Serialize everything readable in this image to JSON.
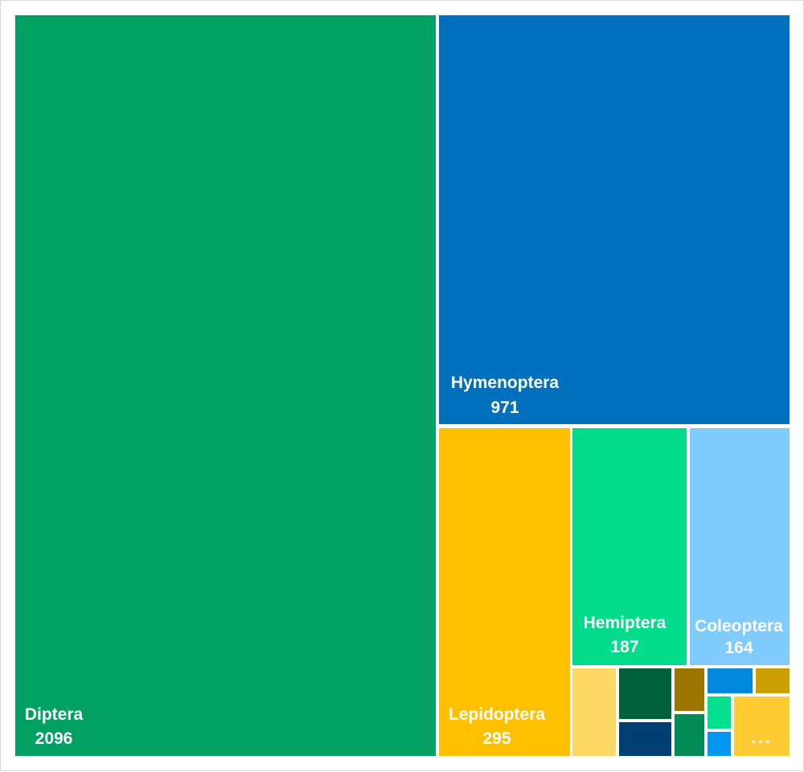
{
  "chart_data": {
    "type": "treemap",
    "title": "",
    "items": [
      {
        "name": "Diptera",
        "value": 2096,
        "color": "#00A063",
        "show_label": true
      },
      {
        "name": "Hymenoptera",
        "value": 971,
        "color": "#0070BC",
        "show_label": true
      },
      {
        "name": "Lepidoptera",
        "value": 295,
        "color": "#FFC000",
        "show_label": true
      },
      {
        "name": "Hemiptera",
        "value": 187,
        "color": "#00DC8C",
        "show_label": true
      },
      {
        "name": "Coleoptera",
        "value": 164,
        "color": "#80CCFF",
        "show_label": true
      },
      {
        "name": "",
        "value": 41,
        "color": "#FFD966",
        "show_label": false
      },
      {
        "name": "",
        "value": 28,
        "color": "#00613C",
        "show_label": false
      },
      {
        "name": "",
        "value": 23,
        "color": "#004070",
        "show_label": false
      },
      {
        "name": "",
        "value": 12,
        "color": "#9C7400",
        "show_label": false
      },
      {
        "name": "",
        "value": 12,
        "color": "#008A55",
        "show_label": false
      },
      {
        "name": "",
        "value": 9,
        "color": "#0088DD",
        "show_label": false
      },
      {
        "name": "",
        "value": 5,
        "color": "#C9A000",
        "show_label": false
      },
      {
        "name": "",
        "value": 5,
        "color": "#00E08F",
        "show_label": false
      },
      {
        "name": "",
        "value": 4,
        "color": "#0098F0",
        "show_label": false
      },
      {
        "name": "",
        "value": 20,
        "color": "#FFCC33",
        "show_label": false,
        "annotation": "..."
      }
    ]
  }
}
